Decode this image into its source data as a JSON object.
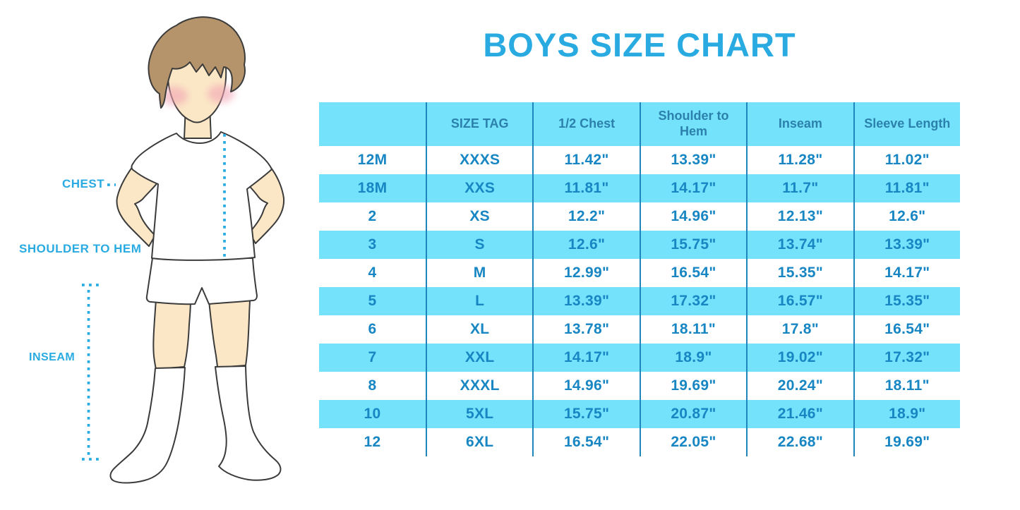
{
  "title": {
    "text": "BOYS SIZE CHART",
    "color": "#29ABE2"
  },
  "figure": {
    "labels": [
      {
        "id": "chest",
        "text": "CHEST"
      },
      {
        "id": "shoulder-to-hem",
        "text": "SHOULDER TO HEM"
      },
      {
        "id": "inseam",
        "text": "INSEAM"
      }
    ],
    "colors": {
      "measure_line": "#29ABE2",
      "skin": "#FBE7C6",
      "hair": "#B5936B",
      "blush": "#F2A3B3",
      "garment": "#FFFFFF",
      "outline": "#3B3B3B"
    }
  },
  "table_style": {
    "band_color": "#74E2FB",
    "divider_color": "#1E86BC",
    "header_text_color": "#2B81AC",
    "cell_text_color": "#1786C3"
  },
  "chart_data": {
    "type": "table",
    "title": "BOYS SIZE CHART",
    "columns": [
      "",
      "SIZE TAG",
      "1/2 Chest",
      "Shoulder to Hem",
      "Inseam",
      "Sleeve Length"
    ],
    "rows": [
      [
        "12M",
        "XXXS",
        "11.42\"",
        "13.39\"",
        "11.28\"",
        "11.02\""
      ],
      [
        "18M",
        "XXS",
        "11.81\"",
        "14.17\"",
        "11.7\"",
        "11.81\""
      ],
      [
        "2",
        "XS",
        "12.2\"",
        "14.96\"",
        "12.13\"",
        "12.6\""
      ],
      [
        "3",
        "S",
        "12.6\"",
        "15.75\"",
        "13.74\"",
        "13.39\""
      ],
      [
        "4",
        "M",
        "12.99\"",
        "16.54\"",
        "15.35\"",
        "14.17\""
      ],
      [
        "5",
        "L",
        "13.39\"",
        "17.32\"",
        "16.57\"",
        "15.35\""
      ],
      [
        "6",
        "XL",
        "13.78\"",
        "18.11\"",
        "17.8\"",
        "16.54\""
      ],
      [
        "7",
        "XXL",
        "14.17\"",
        "18.9\"",
        "19.02\"",
        "17.32\""
      ],
      [
        "8",
        "XXXL",
        "14.96\"",
        "19.69\"",
        "20.24\"",
        "18.11\""
      ],
      [
        "10",
        "5XL",
        "15.75\"",
        "20.87\"",
        "21.46\"",
        "18.9\""
      ],
      [
        "12",
        "6XL",
        "16.54\"",
        "22.05\"",
        "22.68\"",
        "19.69\""
      ]
    ],
    "layout": {
      "banding": "alternating rows, cyan starting at header and every second data row",
      "grid": "vertical column dividers only"
    }
  }
}
